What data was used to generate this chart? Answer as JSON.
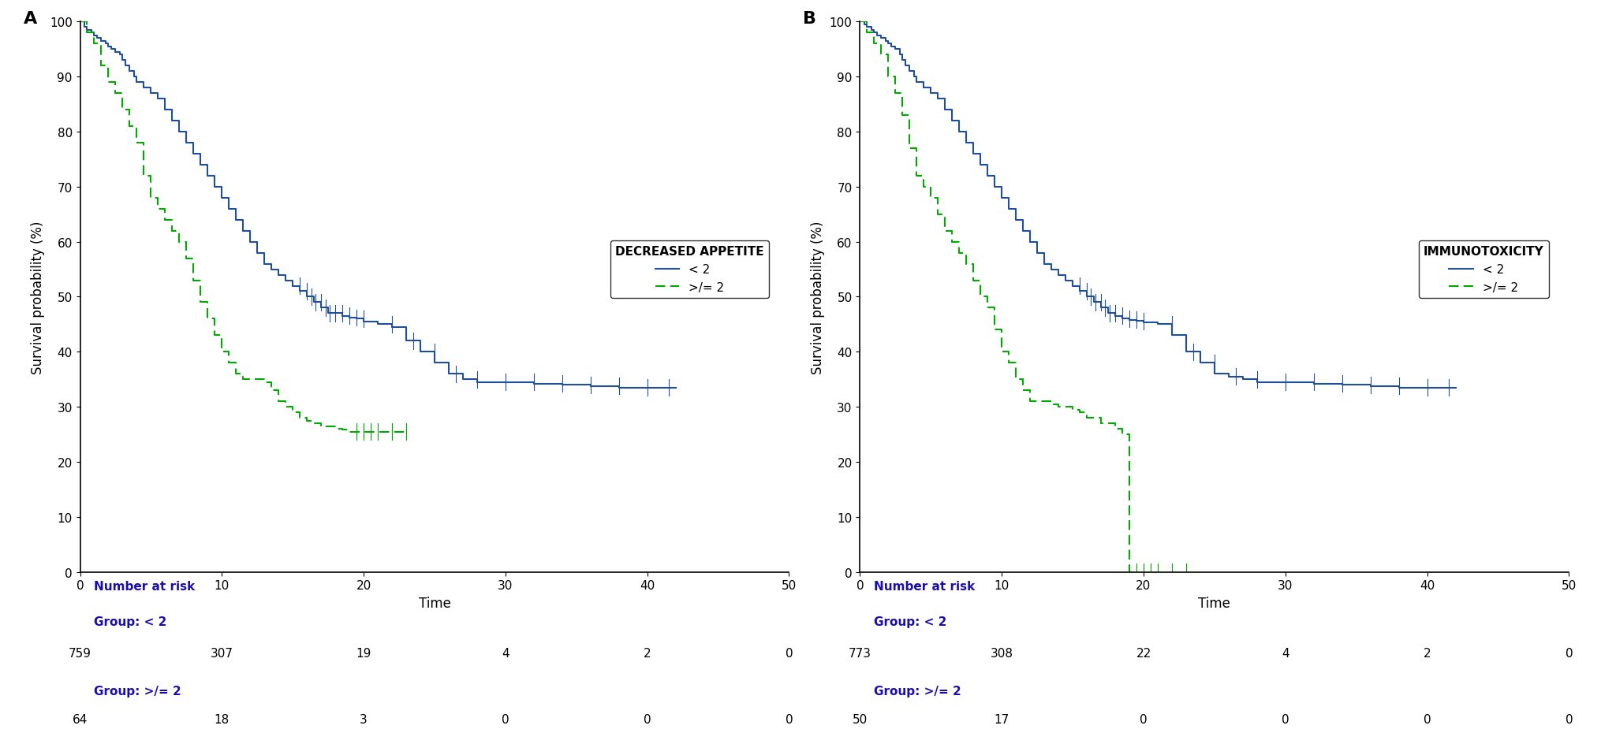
{
  "panel_A": {
    "label": "A",
    "title": "DECREASED APPETITE",
    "group1_label": "< 2",
    "group2_label": ">/= 2",
    "group1_color": "#1f4e9c",
    "group2_color": "#00aa00",
    "xlabel": "Time",
    "ylabel": "Survival probability (%)",
    "xlim": [
      0,
      50
    ],
    "ylim": [
      0,
      100
    ],
    "xticks": [
      0,
      10,
      20,
      30,
      40,
      50
    ],
    "yticks": [
      0,
      10,
      20,
      30,
      40,
      50,
      60,
      70,
      80,
      90,
      100
    ],
    "risk_times": [
      0,
      10,
      20,
      30,
      40,
      50
    ],
    "risk_group1": [
      759,
      307,
      19,
      4,
      2,
      0
    ],
    "risk_group2": [
      64,
      18,
      3,
      0,
      0,
      0
    ],
    "group1_steps": {
      "x": [
        0,
        0.3,
        0.5,
        0.8,
        1.0,
        1.2,
        1.5,
        1.8,
        2.0,
        2.2,
        2.5,
        2.8,
        3.0,
        3.2,
        3.5,
        3.8,
        4.0,
        4.5,
        5.0,
        5.5,
        6.0,
        6.5,
        7.0,
        7.5,
        8.0,
        8.5,
        9.0,
        9.5,
        10.0,
        10.5,
        11.0,
        11.5,
        12.0,
        12.5,
        13.0,
        13.5,
        14.0,
        14.5,
        15.0,
        15.5,
        16.0,
        16.5,
        17.0,
        17.5,
        18.0,
        18.5,
        19.0,
        19.5,
        20.0,
        21.0,
        22.0,
        23.0,
        24.0,
        25.0,
        26.0,
        27.0,
        28.0,
        30.0,
        32.0,
        34.0,
        36.0,
        38.0,
        40.0,
        42.0
      ],
      "y": [
        100,
        99,
        98.5,
        98,
        97.5,
        97,
        96.5,
        96,
        95.5,
        95,
        94.5,
        94,
        93,
        92,
        91,
        90,
        89,
        88,
        87,
        86,
        84,
        82,
        80,
        78,
        76,
        74,
        72,
        70,
        68,
        66,
        64,
        62,
        60,
        58,
        56,
        55,
        54,
        53,
        52,
        51,
        50,
        49,
        48,
        47,
        47,
        46.5,
        46.2,
        46,
        45.5,
        45,
        44.5,
        42,
        40,
        38,
        36,
        35,
        34.5,
        34.5,
        34.2,
        34,
        33.8,
        33.5,
        33.5,
        33.5
      ]
    },
    "group2_steps": {
      "x": [
        0,
        0.5,
        1.0,
        1.5,
        2.0,
        2.5,
        3.0,
        3.5,
        4.0,
        4.5,
        5.0,
        5.5,
        6.0,
        6.5,
        7.0,
        7.5,
        8.0,
        8.5,
        9.0,
        9.5,
        10.0,
        10.5,
        11.0,
        11.5,
        12.0,
        12.5,
        13.0,
        13.5,
        14.0,
        14.5,
        15.0,
        15.5,
        16.0,
        16.5,
        17.0,
        17.5,
        18.0,
        18.5,
        19.0,
        19.5,
        20.0,
        20.5,
        21.0,
        22.0,
        23.0
      ],
      "y": [
        100,
        98,
        96,
        92,
        89,
        87,
        84,
        81,
        78,
        72,
        68,
        66,
        64,
        62,
        60,
        57,
        53,
        49,
        46,
        43,
        40,
        38,
        36,
        35,
        35,
        35,
        34.5,
        33,
        31,
        30,
        29,
        28,
        27.5,
        27,
        26.5,
        26.5,
        26,
        25.8,
        25.5,
        25.5,
        25.5,
        25.5,
        25.5,
        25.5,
        25.5
      ]
    }
  },
  "panel_B": {
    "label": "B",
    "title": "IMMUNOTOXICITY",
    "group1_label": "< 2",
    "group2_label": ">/= 2",
    "group1_color": "#1f4e9c",
    "group2_color": "#00aa00",
    "xlabel": "Time",
    "ylabel": "Survival probability (%)",
    "xlim": [
      0,
      50
    ],
    "ylim": [
      0,
      100
    ],
    "xticks": [
      0,
      10,
      20,
      30,
      40,
      50
    ],
    "yticks": [
      0,
      10,
      20,
      30,
      40,
      50,
      60,
      70,
      80,
      90,
      100
    ],
    "risk_times": [
      0,
      10,
      20,
      30,
      40,
      50
    ],
    "risk_group1": [
      773,
      308,
      22,
      4,
      2,
      0
    ],
    "risk_group2": [
      50,
      17,
      0,
      0,
      0,
      0
    ],
    "group1_steps": {
      "x": [
        0,
        0.3,
        0.5,
        0.8,
        1.0,
        1.2,
        1.5,
        1.8,
        2.0,
        2.2,
        2.5,
        2.8,
        3.0,
        3.2,
        3.5,
        3.8,
        4.0,
        4.5,
        5.0,
        5.5,
        6.0,
        6.5,
        7.0,
        7.5,
        8.0,
        8.5,
        9.0,
        9.5,
        10.0,
        10.5,
        11.0,
        11.5,
        12.0,
        12.5,
        13.0,
        13.5,
        14.0,
        14.5,
        15.0,
        15.5,
        16.0,
        16.5,
        17.0,
        17.5,
        18.0,
        18.5,
        19.0,
        19.5,
        20.0,
        21.0,
        22.0,
        23.0,
        24.0,
        25.0,
        26.0,
        27.0,
        28.0,
        30.0,
        32.0,
        34.0,
        36.0,
        38.0,
        40.0,
        42.0
      ],
      "y": [
        100,
        99.5,
        99,
        98.5,
        98,
        97.5,
        97,
        96.5,
        96,
        95.5,
        95,
        94,
        93,
        92,
        91,
        90,
        89,
        88,
        87,
        86,
        84,
        82,
        80,
        78,
        76,
        74,
        72,
        70,
        68,
        66,
        64,
        62,
        60,
        58,
        56,
        55,
        54,
        53,
        52,
        51,
        50,
        49,
        48,
        47,
        46.5,
        46,
        45.8,
        45.6,
        45.4,
        45,
        43,
        40,
        38,
        36,
        35.5,
        35,
        34.5,
        34.5,
        34.2,
        34,
        33.8,
        33.5,
        33.5,
        33.5
      ]
    },
    "group2_steps": {
      "x": [
        0,
        0.5,
        1.0,
        1.5,
        2.0,
        2.5,
        3.0,
        3.5,
        4.0,
        4.5,
        5.0,
        5.5,
        6.0,
        6.5,
        7.0,
        7.5,
        8.0,
        8.5,
        9.0,
        9.5,
        10.0,
        10.5,
        11.0,
        11.5,
        12.0,
        12.5,
        13.0,
        13.5,
        14.0,
        14.5,
        15.0,
        15.5,
        16.0,
        16.5,
        17.0,
        17.5,
        18.0,
        18.5,
        19.0,
        19.5
      ],
      "y": [
        100,
        98,
        96,
        94,
        90,
        87,
        83,
        77,
        72,
        70,
        68,
        65,
        62,
        60,
        58,
        56,
        53,
        50,
        48,
        44,
        40,
        38,
        35,
        33,
        31,
        31,
        31,
        30.5,
        30,
        30,
        29.5,
        29,
        28,
        28,
        27,
        27,
        26,
        25,
        0,
        0
      ]
    }
  },
  "risk_label_color": "#1a0dab",
  "bg_color": "#ffffff",
  "legend_fontsize": 11,
  "axis_fontsize": 12,
  "tick_fontsize": 11,
  "risk_fontsize": 11
}
